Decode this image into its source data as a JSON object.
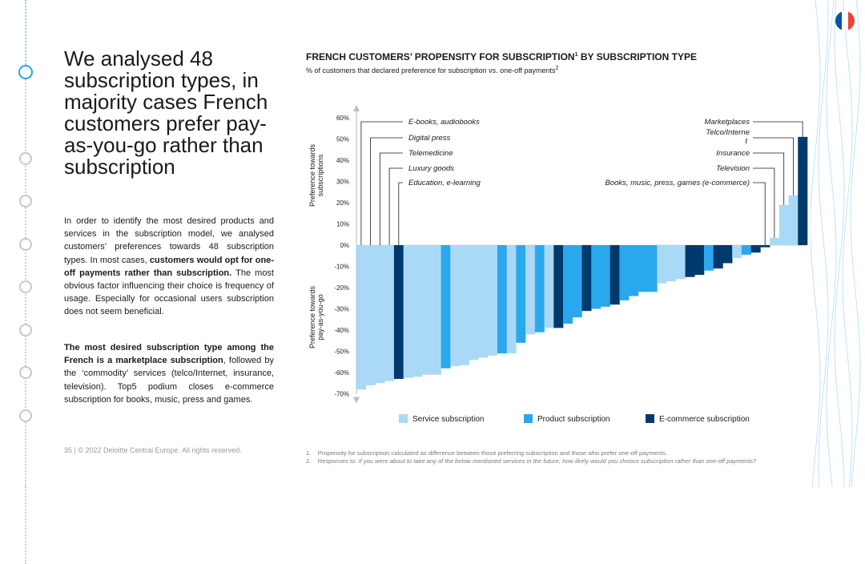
{
  "slide": {
    "title": "We analysed 48 subscription types, in majority cases French customers prefer pay-as-you-go rather than subscription",
    "para1_pre": "In order to identify the most desired products and services in the subscription model, we analysed customers’ preferences towards 48 subscription types. In most cases, ",
    "para1_bold": "customers would opt for one-off payments rather than subscription.",
    "para1_post": " The most obvious factor influencing their choice is frequency of usage. Especially for occasional users subscription does not seem beneficial.",
    "para2_bold": "The most desired subscription type among the French is a marketplace subscription",
    "para2_post": ", followed by the ‘commodity’ services (telco/Internet, insurance, television). Top5 podium closes e-commerce subscription for books, music, press and games.",
    "footer": "35  |  © 2022 Deloitte Central Europe. All rights reserved."
  },
  "flag": {
    "colors": [
      "#0055a4",
      "#ffffff",
      "#ef4135"
    ]
  },
  "chart_data": {
    "type": "bar",
    "title": "FRENCH CUSTOMERS’ PROPENSITY FOR SUBSCRIPTION",
    "title_sup": "1",
    "title_post": " BY SUBSCRIPTION TYPE",
    "subtitle": "% of customers that declared preference for subscription vs. one-off payments",
    "subtitle_sup": "2",
    "ylabel_top": [
      "Preference towards",
      "subscriptions"
    ],
    "ylabel_bottom": [
      "Preference towards",
      "pay-as-you-go"
    ],
    "ylim": [
      -70,
      60
    ],
    "yticks": [
      60,
      50,
      40,
      30,
      20,
      10,
      0,
      -10,
      -20,
      -30,
      -40,
      -50,
      -60,
      -70
    ],
    "ytick_labels": [
      "60%",
      "50%",
      "40%",
      "30%",
      "20%",
      "10%",
      "0%",
      "-10%",
      "-20%",
      "-30%",
      "-40%",
      "-50%",
      "-60%",
      "-70%"
    ],
    "series_types": [
      "Service subscription",
      "Product subscription",
      "E-commerce subscription"
    ],
    "series_colors": [
      "#a9d9f7",
      "#2aa8ee",
      "#003a6c"
    ],
    "values": [
      -68,
      -66,
      -65,
      -64,
      -63,
      -62.5,
      -62,
      -61,
      -61,
      -58,
      -57,
      -56.5,
      -54,
      -53,
      -52,
      -51,
      -51,
      -46,
      -42,
      -41,
      -39,
      -39,
      -37,
      -34,
      -31,
      -30,
      -29,
      -28,
      -26,
      -24,
      -22,
      -22,
      -18,
      -17,
      -16,
      -15,
      -14,
      -12,
      -11,
      -8.5,
      -6,
      -4.5,
      -3.5,
      -1,
      3.5,
      19,
      23.5,
      51
    ],
    "types": [
      0,
      0,
      0,
      0,
      2,
      0,
      0,
      0,
      0,
      1,
      0,
      0,
      0,
      0,
      0,
      1,
      0,
      1,
      0,
      1,
      0,
      2,
      1,
      1,
      2,
      1,
      1,
      2,
      1,
      1,
      1,
      1,
      0,
      0,
      0,
      2,
      2,
      1,
      2,
      2,
      0,
      1,
      2,
      2,
      0,
      0,
      0,
      2
    ],
    "annotations_left": [
      {
        "label": "E-books, audiobooks",
        "bar": 0
      },
      {
        "label": "Digital press",
        "bar": 1
      },
      {
        "label": "Telemedicine",
        "bar": 2
      },
      {
        "label": "Luxury goods",
        "bar": 3
      },
      {
        "label": "Education, e-learning",
        "bar": 4
      }
    ],
    "annotations_right": [
      {
        "label": "Marketplaces",
        "bar": 47
      },
      {
        "label": "Telco/Interne",
        "label2": "t",
        "bar": 46
      },
      {
        "label": "Insurance",
        "bar": 45
      },
      {
        "label": "Television",
        "bar": 44
      },
      {
        "label": "Books, music, press, games (e-commerce)",
        "bar": 43
      }
    ]
  },
  "footnotes": {
    "n1_num": "1.",
    "n1": "Propensity for subscription calculated as difference between those preferring subscription and those who prefer one-off payments.",
    "n2_num": "2.",
    "n2_pre": "Responses to: ",
    "n2_italic": "If you were about to take any of the below mentioned services in the future, how likely would you choose subscription rather than one-off payments?"
  }
}
